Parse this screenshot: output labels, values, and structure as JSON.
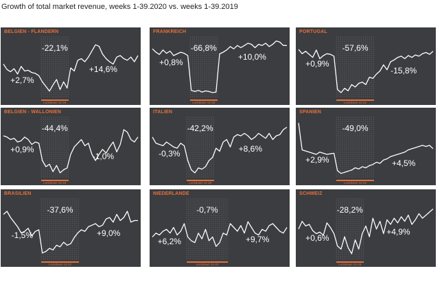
{
  "title": "Growth of total market revenue, weeks 1-39.2020 vs. weeks 1-39.2019",
  "colors": {
    "panel_bg": "#3b3d40",
    "line": "#ffffff",
    "accent": "#e8703a",
    "band": "#6a6c70"
  },
  "chart_data": [
    {
      "type": "line",
      "title": "BELGIEN - FLANDERN",
      "before_label": "+2,7%",
      "lockdown_label": "-22,1%",
      "after_label": "+14,6%",
      "lockdown_text": "Lockdown 12-19",
      "lockdown_weeks": [
        12,
        19
      ],
      "x": [
        1,
        2,
        3,
        4,
        5,
        6,
        7,
        8,
        9,
        10,
        11,
        12,
        13,
        14,
        15,
        16,
        17,
        18,
        19,
        20,
        21,
        22,
        23,
        24,
        25,
        26,
        27,
        28,
        29,
        30,
        31,
        32,
        33,
        34,
        35,
        36,
        37,
        38,
        39
      ],
      "values": [
        5,
        -2,
        -5,
        -1,
        -8,
        2,
        -4,
        -3,
        -6,
        -7,
        -10,
        -18,
        -24,
        -30,
        -22,
        -15,
        -28,
        -18,
        -26,
        0,
        -4,
        10,
        12,
        8,
        14,
        22,
        30,
        28,
        18,
        12,
        8,
        5,
        14,
        16,
        12,
        10,
        14,
        8,
        16
      ],
      "ylim": [
        -40,
        40
      ]
    },
    {
      "type": "line",
      "title": "FRANKREICH",
      "before_label": "+0,8%",
      "lockdown_label": "-66,8%",
      "after_label": "+10,0%",
      "lockdown_text": "Lockdown 12-19",
      "lockdown_weeks": [
        12,
        19
      ],
      "x": [
        1,
        2,
        3,
        4,
        5,
        6,
        7,
        8,
        9,
        10,
        11,
        12,
        13,
        14,
        15,
        16,
        17,
        18,
        19,
        20,
        21,
        22,
        23,
        24,
        25,
        26,
        27,
        28,
        29,
        30,
        31,
        32,
        33,
        34,
        35,
        36,
        37,
        38,
        39
      ],
      "values": [
        4,
        -2,
        -6,
        2,
        -4,
        0,
        -8,
        -5,
        -2,
        -4,
        -8,
        -70,
        -72,
        -70,
        -73,
        -71,
        -72,
        -74,
        -73,
        -5,
        -2,
        2,
        8,
        4,
        10,
        6,
        10,
        14,
        12,
        6,
        12,
        10,
        14,
        8,
        12,
        18,
        16,
        10,
        10
      ],
      "ylim": [
        -85,
        25
      ]
    },
    {
      "type": "line",
      "title": "PORTUGAL",
      "before_label": "+0,9%",
      "lockdown_label": "-57,6%",
      "after_label": "-15,8%",
      "lockdown_text": "Lockdown 12-22",
      "lockdown_weeks": [
        12,
        22
      ],
      "x": [
        1,
        2,
        3,
        4,
        5,
        6,
        7,
        8,
        9,
        10,
        11,
        12,
        13,
        14,
        15,
        16,
        17,
        18,
        19,
        20,
        21,
        22,
        23,
        24,
        25,
        26,
        27,
        28,
        29,
        30,
        31,
        32,
        33,
        34,
        35,
        36,
        37,
        38,
        39
      ],
      "values": [
        5,
        -2,
        2,
        -3,
        -8,
        4,
        -10,
        -5,
        -2,
        -3,
        -6,
        -60,
        -65,
        -58,
        -62,
        -52,
        -56,
        -50,
        -48,
        -52,
        -40,
        -42,
        -35,
        -30,
        -20,
        -28,
        -15,
        -12,
        -8,
        -6,
        -10,
        -5,
        -8,
        -4,
        -6,
        -2,
        0,
        -3,
        2
      ],
      "ylim": [
        -75,
        25
      ]
    },
    {
      "type": "line",
      "title": "BELGIEN - WALLONIEN",
      "before_label": "+0,9%",
      "lockdown_label": "-44,4%",
      "after_label": "-1,0%",
      "lockdown_text": "Lockdown 12-19",
      "lockdown_weeks": [
        12,
        19
      ],
      "x": [
        1,
        2,
        3,
        4,
        5,
        6,
        7,
        8,
        9,
        10,
        11,
        12,
        13,
        14,
        15,
        16,
        17,
        18,
        19,
        20,
        21,
        22,
        23,
        24,
        25,
        26,
        27,
        28,
        29,
        30,
        31,
        32,
        33,
        34,
        35,
        36,
        37,
        38,
        39
      ],
      "values": [
        10,
        8,
        4,
        6,
        0,
        2,
        8,
        4,
        -4,
        0,
        -2,
        -30,
        -40,
        -36,
        -48,
        -38,
        -50,
        -45,
        -42,
        -20,
        -8,
        -2,
        4,
        -6,
        -2,
        -20,
        -30,
        -20,
        -12,
        -18,
        -8,
        0,
        -16,
        -4,
        20,
        16,
        4,
        0,
        8
      ],
      "ylim": [
        -60,
        40
      ]
    },
    {
      "type": "line",
      "title": "ITALIEN",
      "before_label": "-0,3%",
      "lockdown_label": "-42,2%",
      "after_label": "+8,6%",
      "lockdown_text": "Lockdown 11-18",
      "lockdown_weeks": [
        11,
        18
      ],
      "x": [
        1,
        2,
        3,
        4,
        5,
        6,
        7,
        8,
        9,
        10,
        11,
        12,
        13,
        14,
        15,
        16,
        17,
        18,
        19,
        20,
        21,
        22,
        23,
        24,
        25,
        26,
        27,
        28,
        29,
        30,
        31,
        32,
        33,
        34,
        35,
        36,
        37,
        38,
        39
      ],
      "values": [
        8,
        -2,
        -4,
        -6,
        0,
        -4,
        -8,
        -10,
        -2,
        -6,
        -30,
        -45,
        -50,
        -42,
        -44,
        -40,
        -30,
        -25,
        -10,
        -15,
        0,
        4,
        -8,
        8,
        12,
        10,
        14,
        10,
        4,
        8,
        14,
        10,
        6,
        14,
        4,
        10,
        12,
        20,
        24
      ],
      "ylim": [
        -60,
        40
      ]
    },
    {
      "type": "line",
      "title": "SPANIEN",
      "before_label": "+2,9%",
      "lockdown_label": "-49,0%",
      "after_label": "+4,5%",
      "lockdown_text": "Lockdown 12-22",
      "lockdown_weeks": [
        12,
        22
      ],
      "x": [
        1,
        2,
        3,
        4,
        5,
        6,
        7,
        8,
        9,
        10,
        11,
        12,
        13,
        14,
        15,
        16,
        17,
        18,
        19,
        20,
        21,
        22,
        23,
        24,
        25,
        26,
        27,
        28,
        29,
        30,
        31,
        32,
        33,
        34,
        35,
        36,
        37,
        38,
        39
      ],
      "values": [
        40,
        -8,
        -10,
        -12,
        -14,
        -16,
        -12,
        -14,
        -16,
        -15,
        -14,
        -45,
        -50,
        -48,
        -46,
        -44,
        -40,
        -42,
        -38,
        -40,
        -36,
        -34,
        -30,
        -32,
        -26,
        -24,
        -20,
        -18,
        -16,
        -14,
        -12,
        -8,
        -6,
        -4,
        -2,
        0,
        -2,
        0,
        -6
      ],
      "ylim": [
        -60,
        50
      ]
    },
    {
      "type": "line",
      "title": "BRASILIEN",
      "before_label": "-1,5%",
      "lockdown_label": "-37,6%",
      "after_label": "+9,0%",
      "lockdown_text": "Lockdown 12-22",
      "lockdown_weeks": [
        12,
        22
      ],
      "x": [
        1,
        2,
        3,
        4,
        5,
        6,
        7,
        8,
        9,
        10,
        11,
        12,
        13,
        14,
        15,
        16,
        17,
        18,
        19,
        20,
        21,
        22,
        23,
        24,
        25,
        26,
        27,
        28,
        29,
        30,
        31,
        32,
        33,
        34,
        35,
        36,
        37,
        38,
        39
      ],
      "values": [
        10,
        14,
        6,
        0,
        -6,
        -14,
        -12,
        -8,
        -18,
        -12,
        -10,
        -40,
        -38,
        -34,
        -36,
        -30,
        -32,
        -26,
        -30,
        -28,
        -20,
        -14,
        -10,
        -12,
        -6,
        -4,
        -2,
        -6,
        -4,
        4,
        6,
        0,
        10,
        2,
        6,
        14,
        0,
        2,
        2
      ],
      "ylim": [
        -50,
        30
      ]
    },
    {
      "type": "line",
      "title": "NIEDERLANDE",
      "before_label": "+6,2%",
      "lockdown_label": "-0,7%",
      "after_label": "+9,7%",
      "lockdown_text": "Lockdown 11-22",
      "lockdown_weeks": [
        11,
        22
      ],
      "x": [
        1,
        2,
        3,
        4,
        5,
        6,
        7,
        8,
        9,
        10,
        11,
        12,
        13,
        14,
        15,
        16,
        17,
        18,
        19,
        20,
        21,
        22,
        23,
        24,
        25,
        26,
        27,
        28,
        29,
        30,
        31,
        32,
        33,
        34,
        35,
        36,
        37,
        38,
        39
      ],
      "values": [
        0,
        4,
        2,
        6,
        8,
        4,
        10,
        2,
        6,
        14,
        0,
        -4,
        -6,
        4,
        -2,
        8,
        -4,
        0,
        -10,
        -6,
        4,
        2,
        14,
        10,
        6,
        12,
        4,
        16,
        10,
        4,
        2,
        8,
        6,
        12,
        14,
        10,
        6,
        4,
        10
      ],
      "ylim": [
        -25,
        40
      ]
    },
    {
      "type": "line",
      "title": "SCHWEIZ",
      "before_label": "+0,6%",
      "lockdown_label": "-28,2%",
      "after_label": "+4,9%",
      "lockdown_text": "Lockdown 12-19",
      "lockdown_weeks": [
        12,
        19
      ],
      "x": [
        1,
        2,
        3,
        4,
        5,
        6,
        7,
        8,
        9,
        10,
        11,
        12,
        13,
        14,
        15,
        16,
        17,
        18,
        19,
        20,
        21,
        22,
        23,
        24,
        25,
        26,
        27,
        28,
        29,
        30,
        31,
        32,
        33,
        34,
        35,
        36,
        37,
        38,
        39
      ],
      "values": [
        -4,
        6,
        0,
        2,
        -6,
        -10,
        -8,
        -12,
        4,
        -2,
        -10,
        -26,
        -30,
        -14,
        -28,
        -36,
        -18,
        -30,
        -10,
        0,
        -14,
        10,
        -4,
        6,
        -10,
        8,
        2,
        10,
        4,
        12,
        6,
        14,
        2,
        8,
        16,
        10,
        14,
        18,
        22
      ],
      "ylim": [
        -45,
        35
      ]
    }
  ]
}
